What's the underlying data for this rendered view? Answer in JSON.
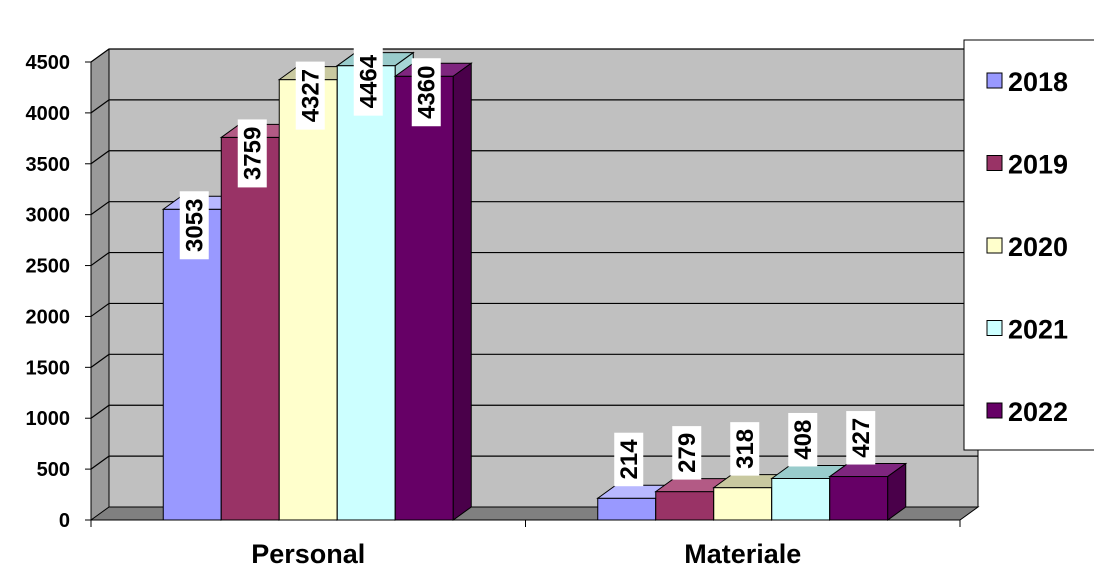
{
  "chart_data": {
    "type": "bar",
    "categories": [
      "Personal",
      "Materiale"
    ],
    "series": [
      {
        "name": "2018",
        "values": [
          3053,
          214
        ],
        "color": "#9999FF",
        "side": "#7878D8",
        "top": "#B8B8FF"
      },
      {
        "name": "2019",
        "values": [
          3759,
          279
        ],
        "color": "#993366",
        "side": "#7A2950",
        "top": "#B35A85"
      },
      {
        "name": "2020",
        "values": [
          4327,
          318
        ],
        "color": "#FFFFCC",
        "side": "#D9D9A8",
        "top": "#C9C9A0"
      },
      {
        "name": "2021",
        "values": [
          4464,
          408
        ],
        "color": "#CCFFFF",
        "side": "#A6D6D6",
        "top": "#99CCCC"
      },
      {
        "name": "2022",
        "values": [
          4360,
          427
        ],
        "color": "#660066",
        "side": "#4A004A",
        "top": "#7F267F"
      }
    ],
    "y_ticks": [
      "0",
      "500",
      "1000",
      "1500",
      "2000",
      "2500",
      "3000",
      "3500",
      "4000",
      "4500"
    ],
    "ylim": [
      0,
      4500
    ],
    "grid": true,
    "legend": "right",
    "title": "",
    "xlabel": "",
    "ylabel": "",
    "plot_background": "#C0C0C0"
  }
}
